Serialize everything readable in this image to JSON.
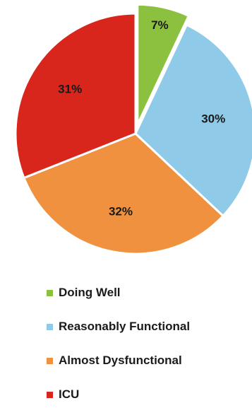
{
  "chart_data": {
    "type": "pie",
    "categories": [
      "Doing Well",
      "Reasonably Functional",
      "Almost Dysfunctional",
      "ICU"
    ],
    "values": [
      7,
      30,
      32,
      31
    ],
    "labels": [
      "7%",
      "30%",
      "32%",
      "31%"
    ],
    "colors": [
      "#8cc13f",
      "#8fcbe8",
      "#f0913f",
      "#d8261d"
    ],
    "exploded": [
      "Doing Well"
    ],
    "legend": {
      "position": "bottom",
      "entries": [
        "Doing Well",
        "Reasonably Functional",
        "Almost Dysfunctional",
        "ICU"
      ]
    }
  }
}
